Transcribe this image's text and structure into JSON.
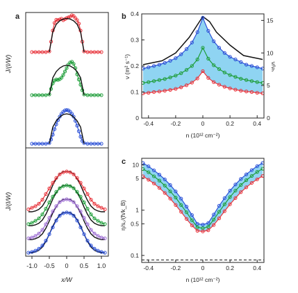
{
  "panel_labels": {
    "a": "a",
    "b": "b",
    "c": "c"
  },
  "colors": {
    "red": "#e8343c",
    "green": "#1f9e3a",
    "blue": "#2a4fd6",
    "purple": "#9b6bd2",
    "band": "#8fd4f2",
    "band_edge": "#6bbfe6",
    "black": "#111111"
  },
  "chart_data": [
    {
      "panel": "a-top",
      "type": "line",
      "ylabel": "J/(I/W)",
      "series": [
        {
          "color_key": "red",
          "markers": true,
          "x": [
            -1.0,
            -0.9,
            -0.8,
            -0.7,
            -0.6,
            -0.5,
            -0.45,
            -0.4,
            -0.35,
            -0.3,
            -0.25,
            -0.2,
            -0.15,
            -0.1,
            -0.05,
            0,
            0.05,
            0.1,
            0.15,
            0.2,
            0.25,
            0.3,
            0.35,
            0.4,
            0.45,
            0.5,
            0.6,
            0.7,
            0.8,
            0.9,
            1.0
          ],
          "y": [
            0.0,
            0.0,
            0.0,
            0.0,
            0.0,
            0.02,
            0.3,
            0.62,
            0.84,
            0.93,
            0.92,
            0.94,
            0.96,
            0.92,
            0.95,
            0.98,
            1.0,
            1.02,
            1.06,
            1.04,
            0.98,
            0.92,
            0.82,
            0.62,
            0.3,
            0.02,
            0.0,
            0.0,
            0.0,
            0.0,
            0.0
          ]
        },
        {
          "color_key": "black",
          "markers": false,
          "x": [
            -0.5,
            -0.4,
            -0.3,
            -0.2,
            -0.1,
            0,
            0.1,
            0.2,
            0.3,
            0.4,
            0.5
          ],
          "y": [
            0.0,
            0.58,
            0.8,
            0.9,
            0.95,
            0.97,
            0.95,
            0.9,
            0.8,
            0.58,
            0.0
          ]
        },
        {
          "color_key": "green",
          "markers": true,
          "x": [
            -1.0,
            -0.9,
            -0.8,
            -0.7,
            -0.6,
            -0.5,
            -0.45,
            -0.4,
            -0.35,
            -0.3,
            -0.25,
            -0.2,
            -0.15,
            -0.1,
            -0.05,
            0,
            0.05,
            0.1,
            0.15,
            0.2,
            0.25,
            0.3,
            0.35,
            0.4,
            0.45,
            0.5,
            0.6,
            0.7,
            0.8,
            0.9,
            1.0
          ],
          "y": [
            0.0,
            0.0,
            0.0,
            0.0,
            0.0,
            0.02,
            0.18,
            0.34,
            0.42,
            0.45,
            0.44,
            0.46,
            0.5,
            0.58,
            0.68,
            0.78,
            0.88,
            0.94,
            0.96,
            0.9,
            0.78,
            0.6,
            0.45,
            0.3,
            0.14,
            0.02,
            0.0,
            0.0,
            0.0,
            0.0,
            0.0
          ]
        },
        {
          "color_key": "black",
          "markers": false,
          "x": [
            -0.5,
            -0.4,
            -0.3,
            -0.2,
            -0.1,
            0,
            0.1,
            0.2,
            0.3,
            0.4,
            0.5
          ],
          "y": [
            0.0,
            0.5,
            0.68,
            0.78,
            0.84,
            0.86,
            0.84,
            0.78,
            0.68,
            0.5,
            0.0
          ]
        },
        {
          "color_key": "blue",
          "markers": true,
          "x": [
            -1.0,
            -0.9,
            -0.8,
            -0.7,
            -0.6,
            -0.5,
            -0.45,
            -0.4,
            -0.35,
            -0.3,
            -0.25,
            -0.2,
            -0.15,
            -0.1,
            -0.05,
            0,
            0.05,
            0.1,
            0.15,
            0.2,
            0.25,
            0.3,
            0.35,
            0.4,
            0.45,
            0.5,
            0.6,
            0.7,
            0.8,
            0.9,
            1.0
          ],
          "y": [
            0.0,
            0.0,
            0.0,
            0.0,
            0.0,
            0.02,
            0.12,
            0.26,
            0.42,
            0.56,
            0.68,
            0.78,
            0.86,
            0.92,
            0.96,
            0.97,
            0.96,
            0.92,
            0.86,
            0.78,
            0.66,
            0.52,
            0.36,
            0.2,
            0.08,
            0.02,
            0.0,
            0.0,
            0.0,
            0.0,
            0.0
          ]
        },
        {
          "color_key": "black",
          "markers": false,
          "x": [
            -0.5,
            -0.4,
            -0.3,
            -0.2,
            -0.1,
            0,
            0.1,
            0.2,
            0.3,
            0.4,
            0.5
          ],
          "y": [
            0.0,
            0.48,
            0.66,
            0.77,
            0.84,
            0.86,
            0.84,
            0.77,
            0.66,
            0.48,
            0.0
          ]
        }
      ]
    },
    {
      "panel": "a-bottom",
      "type": "line",
      "ylabel": "J/(I/W)",
      "xlabel": "x/W",
      "xlim": [
        -1.2,
        1.2
      ],
      "xticks": [
        "-1.0",
        "-0.5",
        "0",
        "0.5",
        "1.0"
      ],
      "xtick_values": [
        -1.0,
        -0.5,
        0,
        0.5,
        1.0
      ],
      "series": [
        {
          "color_key": "red",
          "markers": true,
          "x": [
            -1.1,
            -1.0,
            -0.9,
            -0.8,
            -0.7,
            -0.6,
            -0.5,
            -0.4,
            -0.3,
            -0.2,
            -0.1,
            0,
            0.1,
            0.2,
            0.3,
            0.4,
            0.5,
            0.6,
            0.7,
            0.8,
            0.9,
            1.0,
            1.1
          ],
          "y": [
            0.06,
            0.1,
            0.14,
            0.2,
            0.3,
            0.44,
            0.58,
            0.72,
            0.84,
            0.93,
            0.98,
            1.0,
            0.98,
            0.93,
            0.84,
            0.72,
            0.58,
            0.44,
            0.3,
            0.2,
            0.14,
            0.1,
            0.06
          ]
        },
        {
          "color_key": "green",
          "markers": true,
          "x": [
            -1.1,
            -1.0,
            -0.9,
            -0.8,
            -0.7,
            -0.6,
            -0.5,
            -0.4,
            -0.3,
            -0.2,
            -0.1,
            0,
            0.1,
            0.2,
            0.3,
            0.4,
            0.5,
            0.6,
            0.7,
            0.8,
            0.9,
            1.0,
            1.1
          ],
          "y": [
            0.04,
            0.07,
            0.12,
            0.18,
            0.28,
            0.42,
            0.58,
            0.72,
            0.84,
            0.93,
            0.98,
            1.0,
            0.98,
            0.93,
            0.84,
            0.72,
            0.58,
            0.42,
            0.28,
            0.18,
            0.12,
            0.07,
            0.04
          ]
        },
        {
          "color_key": "purple",
          "markers": true,
          "x": [
            -1.1,
            -1.0,
            -0.9,
            -0.8,
            -0.7,
            -0.6,
            -0.5,
            -0.4,
            -0.3,
            -0.2,
            -0.1,
            0,
            0.1,
            0.2,
            0.3,
            0.4,
            0.5,
            0.6,
            0.7,
            0.8,
            0.9,
            1.0,
            1.1
          ],
          "y": [
            0.03,
            0.05,
            0.09,
            0.15,
            0.24,
            0.38,
            0.54,
            0.7,
            0.83,
            0.93,
            0.98,
            1.0,
            0.98,
            0.93,
            0.83,
            0.7,
            0.54,
            0.38,
            0.24,
            0.15,
            0.09,
            0.05,
            0.03
          ]
        },
        {
          "color_key": "blue",
          "markers": true,
          "x": [
            -1.1,
            -1.0,
            -0.9,
            -0.8,
            -0.7,
            -0.6,
            -0.5,
            -0.4,
            -0.3,
            -0.2,
            -0.1,
            0,
            0.1,
            0.2,
            0.3,
            0.4,
            0.5,
            0.6,
            0.7,
            0.8,
            0.9,
            1.0,
            1.1
          ],
          "y": [
            0.0,
            0.02,
            0.05,
            0.1,
            0.18,
            0.3,
            0.46,
            0.63,
            0.8,
            0.92,
            0.98,
            1.0,
            0.98,
            0.92,
            0.8,
            0.63,
            0.46,
            0.3,
            0.18,
            0.1,
            0.05,
            0.02,
            0.0
          ]
        }
      ],
      "theory": {
        "color_key": "black",
        "x": [
          -1.1,
          -1.0,
          -0.9,
          -0.8,
          -0.7,
          -0.6,
          -0.5,
          -0.4,
          -0.3,
          -0.2,
          -0.1,
          0,
          0.1,
          0.2,
          0.3,
          0.4,
          0.5,
          0.6,
          0.7,
          0.8,
          0.9,
          1.0,
          1.1
        ],
        "y": [
          0.0,
          0.0,
          0.02,
          0.06,
          0.14,
          0.28,
          0.46,
          0.66,
          0.82,
          0.94,
          0.99,
          1.0,
          0.99,
          0.94,
          0.82,
          0.66,
          0.46,
          0.28,
          0.14,
          0.06,
          0.02,
          0.0,
          0.0
        ]
      }
    },
    {
      "panel": "b",
      "type": "line",
      "xlabel": "n (10¹² cm⁻²)",
      "ylabel": "ν (m² s⁻¹)",
      "ylabel_right": "ν/νₕ",
      "xlim": [
        -0.45,
        0.45
      ],
      "ylim": [
        0,
        0.4
      ],
      "xticks": [
        "-0.4",
        "-0.2",
        "0",
        "0.2",
        "0.4"
      ],
      "xtick_values": [
        -0.4,
        -0.2,
        0,
        0.2,
        0.4
      ],
      "yticks": [
        "0",
        "0.1",
        "0.2",
        "0.3",
        "0.4"
      ],
      "ytick_values": [
        0,
        0.1,
        0.2,
        0.3,
        0.4
      ],
      "yticks_right": [
        "0",
        "5",
        "10",
        "15"
      ],
      "ytick_right_values": [
        0,
        5,
        10,
        15
      ],
      "right_ylim": [
        0,
        16
      ],
      "series": [
        {
          "color_key": "blue",
          "x": [
            -0.44,
            -0.4,
            -0.36,
            -0.32,
            -0.28,
            -0.24,
            -0.2,
            -0.16,
            -0.12,
            -0.08,
            -0.04,
            0,
            0.04,
            0.08,
            0.12,
            0.16,
            0.2,
            0.24,
            0.28,
            0.32,
            0.36,
            0.4,
            0.44
          ],
          "y": [
            0.19,
            0.195,
            0.2,
            0.205,
            0.212,
            0.22,
            0.23,
            0.245,
            0.265,
            0.29,
            0.33,
            0.385,
            0.335,
            0.295,
            0.27,
            0.25,
            0.235,
            0.225,
            0.215,
            0.205,
            0.2,
            0.195,
            0.19
          ]
        },
        {
          "color_key": "green",
          "x": [
            -0.44,
            -0.4,
            -0.36,
            -0.32,
            -0.28,
            -0.24,
            -0.2,
            -0.16,
            -0.12,
            -0.08,
            -0.04,
            0,
            0.04,
            0.08,
            0.12,
            0.16,
            0.2,
            0.24,
            0.28,
            0.32,
            0.36,
            0.4,
            0.44
          ],
          "y": [
            0.135,
            0.138,
            0.142,
            0.146,
            0.15,
            0.156,
            0.163,
            0.172,
            0.185,
            0.2,
            0.225,
            0.27,
            0.228,
            0.203,
            0.188,
            0.175,
            0.165,
            0.158,
            0.151,
            0.146,
            0.142,
            0.138,
            0.135
          ]
        },
        {
          "color_key": "red",
          "x": [
            -0.44,
            -0.4,
            -0.36,
            -0.32,
            -0.28,
            -0.24,
            -0.2,
            -0.16,
            -0.12,
            -0.08,
            -0.04,
            0,
            0.04,
            0.08,
            0.12,
            0.16,
            0.2,
            0.24,
            0.28,
            0.32,
            0.36,
            0.4,
            0.44
          ],
          "y": [
            0.095,
            0.097,
            0.1,
            0.102,
            0.105,
            0.108,
            0.112,
            0.118,
            0.126,
            0.136,
            0.152,
            0.18,
            0.154,
            0.138,
            0.128,
            0.12,
            0.114,
            0.109,
            0.105,
            0.102,
            0.1,
            0.097,
            0.095
          ]
        }
      ],
      "theory": {
        "color_key": "black",
        "x": [
          -0.44,
          -0.3,
          -0.2,
          -0.1,
          -0.05,
          0,
          0.05,
          0.1,
          0.2,
          0.3,
          0.44
        ],
        "y": [
          0.205,
          0.22,
          0.25,
          0.31,
          0.35,
          0.39,
          0.37,
          0.33,
          0.28,
          0.24,
          0.225
        ]
      }
    },
    {
      "panel": "c",
      "type": "line",
      "log_y": true,
      "xlabel": "n (10¹² cm⁻²)",
      "ylabel": "η/s꜀/(ħ/k_B)",
      "xlim": [
        -0.45,
        0.45
      ],
      "ylim": [
        0.07,
        14
      ],
      "xticks": [
        "-0.4",
        "-0.2",
        "0",
        "0.2",
        "0.4"
      ],
      "xtick_values": [
        -0.4,
        -0.2,
        0,
        0.2,
        0.4
      ],
      "yticks": [
        "0.1",
        "0.5",
        "1",
        "5",
        "10"
      ],
      "ytick_values": [
        0.1,
        0.5,
        1,
        5,
        10
      ],
      "kss_bound": 0.0796,
      "series": [
        {
          "color_key": "blue",
          "x": [
            -0.44,
            -0.4,
            -0.36,
            -0.32,
            -0.28,
            -0.24,
            -0.2,
            -0.16,
            -0.12,
            -0.08,
            -0.04,
            0,
            0.04,
            0.08,
            0.12,
            0.16,
            0.2,
            0.24,
            0.28,
            0.32,
            0.36,
            0.4,
            0.44
          ],
          "y": [
            11,
            9.3,
            7.6,
            6.1,
            4.8,
            3.6,
            2.6,
            1.8,
            1.2,
            0.78,
            0.5,
            0.48,
            0.52,
            0.8,
            1.25,
            1.85,
            2.7,
            3.7,
            4.9,
            6.2,
            7.7,
            9.4,
            11
          ]
        },
        {
          "color_key": "green",
          "x": [
            -0.44,
            -0.4,
            -0.36,
            -0.32,
            -0.28,
            -0.24,
            -0.2,
            -0.16,
            -0.12,
            -0.08,
            -0.04,
            0,
            0.04,
            0.08,
            0.12,
            0.16,
            0.2,
            0.24,
            0.28,
            0.32,
            0.36,
            0.4,
            0.44
          ],
          "y": [
            8.1,
            6.9,
            5.6,
            4.5,
            3.5,
            2.6,
            1.9,
            1.3,
            0.9,
            0.6,
            0.42,
            0.4,
            0.43,
            0.62,
            0.92,
            1.35,
            1.95,
            2.7,
            3.6,
            4.6,
            5.7,
            7.0,
            8.2
          ]
        },
        {
          "color_key": "red",
          "x": [
            -0.44,
            -0.4,
            -0.36,
            -0.32,
            -0.28,
            -0.24,
            -0.2,
            -0.16,
            -0.12,
            -0.08,
            -0.04,
            0,
            0.04,
            0.08,
            0.12,
            0.16,
            0.2,
            0.24,
            0.28,
            0.32,
            0.36,
            0.4,
            0.44
          ],
          "y": [
            5.6,
            4.7,
            3.9,
            3.1,
            2.4,
            1.8,
            1.3,
            0.92,
            0.64,
            0.46,
            0.35,
            0.34,
            0.36,
            0.47,
            0.66,
            0.95,
            1.35,
            1.85,
            2.5,
            3.2,
            4.0,
            4.8,
            5.7
          ]
        }
      ]
    }
  ]
}
